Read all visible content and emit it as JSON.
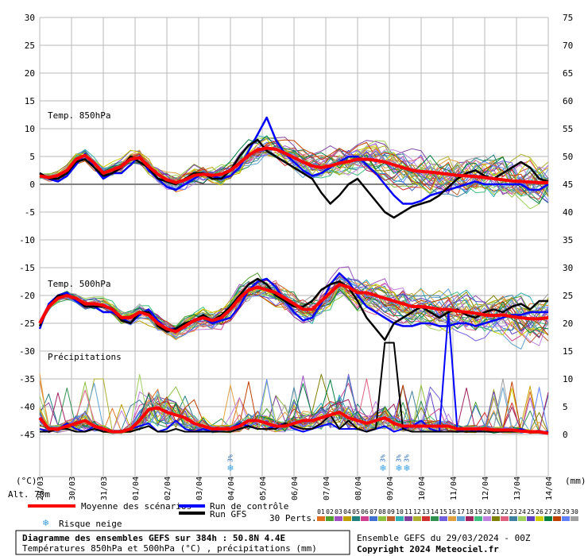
{
  "chart_data": {
    "type": "line",
    "title": "Diagramme des ensembles GEFS sur 384h : 50.8N 4.4E",
    "subtitle": "Températures 850hPa et 500hPa (°C) , précipitations (mm)",
    "left_axis": {
      "unit": "(°C)",
      "ticks": [
        30,
        25,
        20,
        15,
        10,
        5,
        0,
        -5,
        -10,
        -15,
        -20,
        -25,
        -30,
        -35,
        -40,
        -45
      ],
      "range": [
        -45,
        30
      ]
    },
    "right_axis": {
      "unit": "(mm)",
      "ticks": [
        75,
        70,
        65,
        60,
        55,
        50,
        45,
        40,
        35,
        30,
        25,
        20,
        15,
        10,
        5,
        0
      ],
      "range": [
        0,
        75
      ]
    },
    "x": [
      "29/03",
      "30/03",
      "31/03",
      "01/04",
      "02/04",
      "03/04",
      "04/04",
      "05/04",
      "06/04",
      "07/04",
      "08/04",
      "09/04",
      "10/04",
      "11/04",
      "12/04",
      "13/04",
      "14/04"
    ],
    "grid": true,
    "sections": {
      "t850": "Temp. 850hPa",
      "t500": "Temp. 500hPa",
      "precip": "Précipitations"
    },
    "t850_mean": [
      1.5,
      1.2,
      1.6,
      2.5,
      4.5,
      5.2,
      3.8,
      2.0,
      2.6,
      3.2,
      4.5,
      4.8,
      3.2,
      1.8,
      0.8,
      0.3,
      0.8,
      1.6,
      1.8,
      1.6,
      1.8,
      2.5,
      3.8,
      5.2,
      6.2,
      6.5,
      6.3,
      5.6,
      4.8,
      4.0,
      3.3,
      3.0,
      3.3,
      3.8,
      4.1,
      4.5,
      4.5,
      4.3,
      4.0,
      3.5,
      3.0,
      2.5,
      2.3,
      2.2,
      2.0,
      1.8,
      1.6,
      1.5,
      1.4,
      1.2,
      1.0,
      0.8,
      0.6,
      0.5,
      0.4,
      0.3,
      0.3
    ],
    "t850_control": [
      2.0,
      1.0,
      0.5,
      1.5,
      3.5,
      5.5,
      3.0,
      1.0,
      2.0,
      2.0,
      3.5,
      5.0,
      2.5,
      1.0,
      -0.5,
      -1.0,
      0.0,
      1.0,
      2.0,
      1.5,
      1.0,
      1.5,
      3.0,
      6.0,
      9.0,
      12.0,
      8.0,
      5.5,
      4.0,
      2.5,
      1.5,
      2.0,
      3.0,
      4.0,
      5.0,
      5.0,
      3.5,
      2.0,
      0.0,
      -2.0,
      -3.5,
      -3.5,
      -3.0,
      -2.0,
      -1.5,
      -1.0,
      -0.5,
      0.0,
      0.5,
      0.0,
      0.0,
      0.0,
      0.0,
      0.0,
      -1.0,
      -1.0,
      0.0
    ],
    "t850_gfs": [
      2.0,
      1.0,
      1.0,
      2.0,
      4.0,
      4.5,
      3.0,
      1.5,
      2.0,
      3.0,
      5.0,
      4.0,
      3.0,
      1.0,
      0.5,
      0.0,
      1.0,
      2.0,
      2.0,
      1.0,
      1.0,
      2.5,
      5.0,
      7.0,
      8.0,
      6.0,
      5.0,
      4.0,
      3.0,
      2.0,
      1.0,
      -1.5,
      -3.5,
      -2.0,
      0.0,
      1.0,
      -1.0,
      -3.0,
      -5.0,
      -6.0,
      -5.0,
      -4.0,
      -3.5,
      -3.0,
      -2.0,
      -0.5,
      1.0,
      2.0,
      2.5,
      1.5,
      1.0,
      2.0,
      3.0,
      4.0,
      3.0,
      1.0,
      0.5
    ],
    "t500_mean": [
      -25.0,
      -22.0,
      -20.5,
      -20.0,
      -20.5,
      -21.5,
      -21.5,
      -21.8,
      -22.5,
      -24.0,
      -24.0,
      -23.0,
      -23.5,
      -25.0,
      -26.0,
      -26.5,
      -25.5,
      -24.5,
      -24.0,
      -24.5,
      -24.0,
      -22.5,
      -20.5,
      -19.0,
      -18.5,
      -19.0,
      -19.5,
      -20.5,
      -21.5,
      -22.5,
      -22.5,
      -21.0,
      -19.5,
      -18.0,
      -18.5,
      -19.5,
      -19.5,
      -20.0,
      -20.5,
      -21.0,
      -21.5,
      -22.0,
      -22.0,
      -22.2,
      -22.5,
      -22.5,
      -22.8,
      -23.0,
      -23.2,
      -23.5,
      -23.6,
      -23.5,
      -23.8,
      -24.0,
      -24.2,
      -24.2,
      -24.0
    ],
    "t500_control": [
      -26.0,
      -21.5,
      -20.0,
      -19.5,
      -21.0,
      -22.0,
      -22.0,
      -23.0,
      -23.0,
      -24.0,
      -25.0,
      -23.5,
      -22.5,
      -24.5,
      -26.0,
      -26.0,
      -25.0,
      -24.5,
      -24.0,
      -25.0,
      -24.5,
      -24.0,
      -22.0,
      -19.0,
      -17.5,
      -17.0,
      -18.5,
      -21.0,
      -23.0,
      -24.5,
      -24.0,
      -21.5,
      -18.0,
      -16.0,
      -17.5,
      -20.0,
      -22.0,
      -23.0,
      -24.0,
      -25.0,
      -25.5,
      -25.5,
      -25.0,
      -25.0,
      -25.5,
      -25.5,
      -25.0,
      -25.0,
      -25.5,
      -25.0,
      -24.5,
      -24.0,
      -23.5,
      -23.5,
      -23.0,
      -23.0,
      -23.0
    ],
    "t500_gfs": [
      -25.5,
      -22.0,
      -20.0,
      -20.0,
      -20.5,
      -22.0,
      -22.0,
      -22.0,
      -22.5,
      -24.5,
      -25.0,
      -23.0,
      -23.0,
      -25.5,
      -26.5,
      -26.0,
      -25.0,
      -24.5,
      -23.5,
      -24.5,
      -23.5,
      -22.0,
      -20.0,
      -18.0,
      -17.0,
      -18.0,
      -20.0,
      -21.0,
      -22.0,
      -22.0,
      -21.0,
      -19.0,
      -18.0,
      -17.5,
      -18.5,
      -21.0,
      -24.0,
      -26.0,
      -28.0,
      -25.0,
      -24.0,
      -23.0,
      -22.0,
      -23.0,
      -24.0,
      -23.0,
      -22.5,
      -23.5,
      -24.0,
      -23.0,
      -22.5,
      -23.0,
      -22.0,
      -21.5,
      -22.5,
      -21.0,
      -21.0
    ],
    "precip_mean": [
      3.0,
      1.0,
      1.0,
      1.5,
      2.0,
      2.5,
      1.5,
      1.0,
      0.5,
      0.5,
      1.0,
      2.5,
      4.5,
      4.8,
      4.0,
      3.5,
      3.0,
      2.0,
      1.5,
      1.0,
      1.0,
      1.0,
      1.5,
      2.5,
      2.5,
      2.0,
      1.5,
      1.5,
      2.0,
      2.5,
      2.5,
      3.0,
      3.5,
      4.0,
      3.0,
      2.5,
      2.0,
      2.5,
      3.0,
      2.0,
      1.5,
      1.5,
      1.5,
      1.5,
      1.5,
      1.5,
      1.0,
      1.0,
      1.0,
      1.0,
      0.8,
      0.8,
      0.8,
      0.6,
      0.5,
      0.5,
      0.2
    ],
    "precip_control": [
      1.0,
      0.5,
      1.0,
      2.0,
      1.0,
      0.5,
      1.5,
      0.5,
      0.5,
      0.5,
      1.0,
      1.5,
      2.0,
      0.5,
      1.0,
      2.5,
      1.0,
      0.5,
      1.0,
      0.5,
      1.0,
      1.0,
      2.0,
      1.5,
      1.0,
      1.0,
      1.5,
      2.0,
      1.0,
      0.5,
      1.0,
      1.5,
      2.0,
      1.0,
      1.0,
      1.0,
      0.5,
      1.0,
      1.5,
      0.5,
      1.0,
      1.5,
      2.5,
      1.0,
      0.5,
      22.0,
      0.5,
      1.0,
      0.5,
      1.0,
      0.5,
      0.5,
      0.5,
      1.0,
      0.5,
      0.5,
      0.5
    ],
    "precip_gfs": [
      0.5,
      0.5,
      1.0,
      1.0,
      0.5,
      0.5,
      1.0,
      0.5,
      0.5,
      0.5,
      0.5,
      1.0,
      1.5,
      0.5,
      0.5,
      1.0,
      0.5,
      0.5,
      0.5,
      0.5,
      0.5,
      0.5,
      1.0,
      1.5,
      1.0,
      1.0,
      1.0,
      2.0,
      1.5,
      1.0,
      1.0,
      2.0,
      3.5,
      1.0,
      2.5,
      1.0,
      0.5,
      1.0,
      16.5,
      16.5,
      1.0,
      0.5,
      0.5,
      0.5,
      0.5,
      0.5,
      0.5,
      0.5,
      0.5,
      0.5,
      0.5,
      0.5,
      0.5,
      0.5,
      0.5,
      0.5,
      0.3
    ]
  },
  "header_colors": {
    "mean": "#ff0000",
    "control": "#0000ff",
    "gfs": "#000000",
    "snow": "#3aa0e0"
  },
  "altitude": "Alt. 70m",
  "snow_risk": [
    {
      "day": 6.0,
      "label": "3%"
    },
    {
      "day": 10.8,
      "label": "3%"
    },
    {
      "day": 11.3,
      "label": "3%"
    },
    {
      "day": 11.55,
      "label": "3%"
    }
  ],
  "legend": {
    "mean": "Moyenne des scénarios",
    "control": "Run de contrôle",
    "gfs": "Run GFS",
    "snow": "Risque neige",
    "perts": "30 Perts.",
    "pert_numbers": [
      "01",
      "02",
      "03",
      "04",
      "05",
      "06",
      "07",
      "08",
      "09",
      "10",
      "11",
      "12",
      "13",
      "14",
      "15",
      "16",
      "17",
      "18",
      "19",
      "20",
      "21",
      "22",
      "23",
      "24",
      "25",
      "26",
      "27",
      "28",
      "29",
      "30"
    ],
    "pert_colors": [
      "#e07020",
      "#50a030",
      "#a050c0",
      "#c0a000",
      "#208080",
      "#d04090",
      "#4070d0",
      "#90c040",
      "#c06030",
      "#30b0b0",
      "#8040a0",
      "#b0b030",
      "#d03030",
      "#309050",
      "#7060e0",
      "#e0a040",
      "#60a0d0",
      "#a02060",
      "#40c080",
      "#c080e0",
      "#808000",
      "#e06080",
      "#4080a0",
      "#a0d060",
      "#6040c0",
      "#d0d000",
      "#008040",
      "#c04000",
      "#6080ff",
      "#a0a0a0"
    ]
  },
  "footer": {
    "title": "Diagramme des ensembles GEFS sur 384h : 50.8N 4.4E",
    "subtitle": "Températures 850hPa et 500hPa (°C) , précipitations (mm)",
    "run": "Ensemble GEFS du 29/03/2024 - 00Z",
    "copyright": "Copyright 2024 Meteociel.fr"
  }
}
